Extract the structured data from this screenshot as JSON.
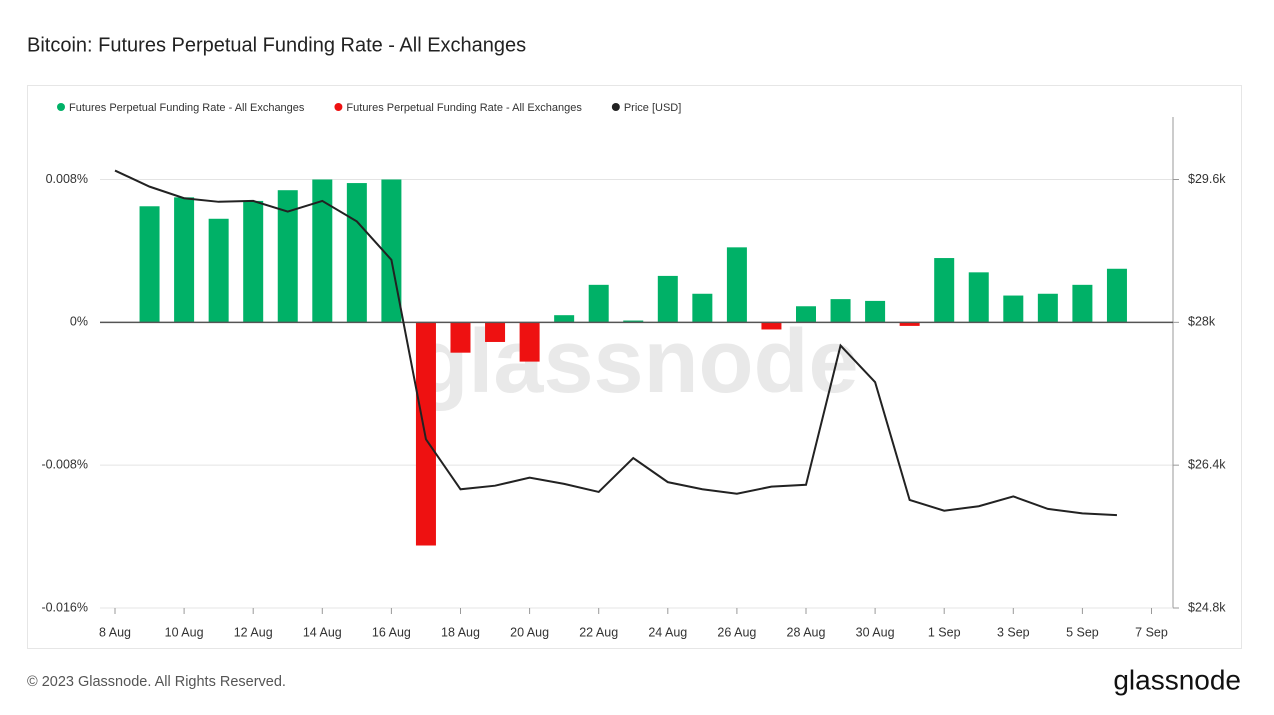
{
  "chart_data": {
    "type": "bar",
    "title": "Bitcoin: Futures Perpetual Funding Rate - All Exchanges",
    "watermark": "glassnode",
    "footer": "© 2023 Glassnode. All Rights Reserved.",
    "logo": "glassnode",
    "categories": [
      "8 Aug",
      null,
      "10 Aug",
      null,
      "12 Aug",
      null,
      "14 Aug",
      null,
      "16 Aug",
      null,
      "18 Aug",
      null,
      "20 Aug",
      null,
      "22 Aug",
      null,
      "24 Aug",
      null,
      "26 Aug",
      null,
      "28 Aug",
      null,
      "30 Aug",
      null,
      "1 Sep",
      null,
      "3 Sep",
      null,
      "5 Sep",
      null,
      "7 Sep"
    ],
    "series": [
      {
        "name": "Futures Perpetual Funding Rate - All Exchanges",
        "color": "#00b167",
        "type": "bar",
        "values": [
          null,
          0.0065,
          0.007,
          0.0058,
          0.0068,
          0.0074,
          0.008,
          0.0078,
          0.008,
          null,
          null,
          null,
          null,
          0.0004,
          0.0021,
          0.0001,
          0.0026,
          0.0016,
          0.0042,
          null,
          0.0009,
          0.0013,
          0.0012,
          null,
          0.0036,
          0.0028,
          0.0015,
          0.0016,
          0.0021,
          0.003,
          null
        ]
      },
      {
        "name": "Futures Perpetual Funding Rate - All Exchanges",
        "color": "#ee1111",
        "type": "bar",
        "values": [
          null,
          null,
          null,
          null,
          null,
          null,
          null,
          null,
          null,
          -0.0125,
          -0.0017,
          -0.0011,
          -0.0022,
          null,
          null,
          null,
          null,
          null,
          null,
          -0.0004,
          null,
          null,
          null,
          -0.0002,
          null,
          null,
          null,
          null,
          null,
          null,
          null
        ]
      },
      {
        "name": "Price [USD]",
        "color": "#222222",
        "type": "line",
        "axis": "y2",
        "values": [
          29700,
          29520,
          29390,
          29350,
          29360,
          29240,
          29360,
          29130,
          28700,
          26690,
          26130,
          26170,
          26260,
          26190,
          26100,
          26480,
          26210,
          26130,
          26080,
          26160,
          26180,
          27740,
          27330,
          26010,
          25890,
          25940,
          26050,
          25910,
          25860,
          25840,
          null
        ]
      }
    ],
    "ylim": [
      -0.016,
      0.0115
    ],
    "yticks": [
      {
        "value": 0.008,
        "label": "0.008%"
      },
      {
        "value": 0,
        "label": "0%"
      },
      {
        "value": -0.008,
        "label": "-0.008%"
      },
      {
        "value": -0.016,
        "label": "-0.016%"
      }
    ],
    "y2lim": [
      24800,
      30300
    ],
    "y2ticks": [
      {
        "value": 29600,
        "label": "$29.6k"
      },
      {
        "value": 28000,
        "label": "$28k"
      },
      {
        "value": 26400,
        "label": "$26.4k"
      },
      {
        "value": 24800,
        "label": "$24.8k"
      }
    ],
    "grid": true,
    "legend": "top-left"
  }
}
